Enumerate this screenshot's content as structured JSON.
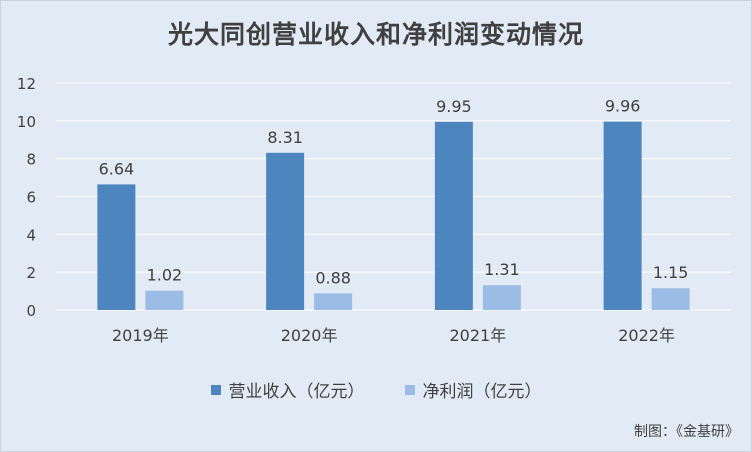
{
  "chart_data": {
    "type": "bar",
    "title": "光大同创营业收入和净利润变动情况",
    "categories": [
      "2019年",
      "2020年",
      "2021年",
      "2022年"
    ],
    "series": [
      {
        "name": "营业收入（亿元）",
        "values": [
          6.64,
          8.31,
          9.95,
          9.96
        ],
        "color": "#4d86be"
      },
      {
        "name": "净利润（亿元）",
        "values": [
          1.02,
          0.88,
          1.31,
          1.15
        ],
        "color": "#9bbde5"
      }
    ],
    "data_labels": [
      [
        "6.64",
        "8.31",
        "9.95",
        "9.96"
      ],
      [
        "1.02",
        "0.88",
        "1.31",
        "1.15"
      ]
    ],
    "yticks": [
      "0",
      "2",
      "4",
      "6",
      "8",
      "10",
      "12"
    ],
    "ylim": [
      0,
      12
    ],
    "grid": true,
    "legend_position": "bottom",
    "xlabel": "",
    "ylabel": ""
  },
  "source_note": "制图：《金基研》",
  "colors": {
    "background": "#e2ebf5",
    "gridline": "#ffffff",
    "text": "#404040"
  }
}
